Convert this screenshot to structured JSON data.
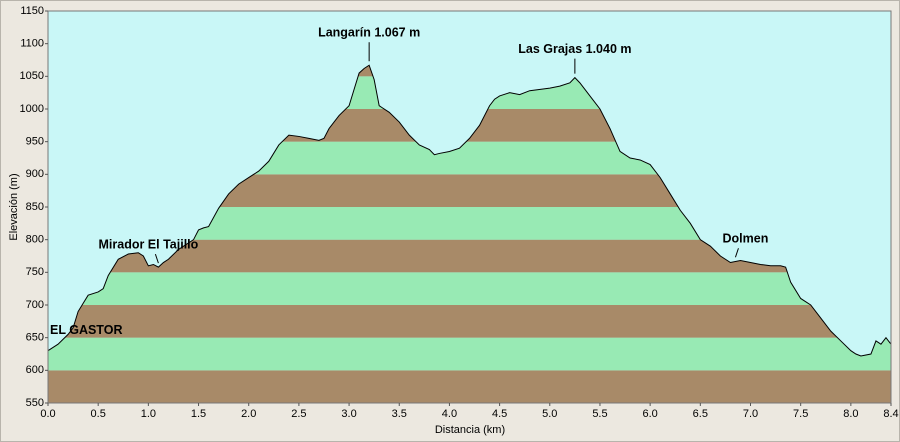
{
  "chart_data": {
    "type": "area",
    "x_label": "Distancia  (km)",
    "y_label": "Elevación (m)",
    "x": [
      0.0,
      0.05,
      0.1,
      0.2,
      0.25,
      0.3,
      0.4,
      0.5,
      0.55,
      0.6,
      0.7,
      0.8,
      0.9,
      0.95,
      1.0,
      1.05,
      1.1,
      1.15,
      1.2,
      1.3,
      1.45,
      1.5,
      1.55,
      1.6,
      1.7,
      1.8,
      1.9,
      2.0,
      2.1,
      2.2,
      2.3,
      2.4,
      2.5,
      2.6,
      2.7,
      2.75,
      2.8,
      2.9,
      3.0,
      3.05,
      3.1,
      3.15,
      3.2,
      3.25,
      3.3,
      3.4,
      3.5,
      3.6,
      3.7,
      3.8,
      3.85,
      3.9,
      4.0,
      4.1,
      4.2,
      4.3,
      4.4,
      4.45,
      4.5,
      4.6,
      4.7,
      4.8,
      5.0,
      5.1,
      5.2,
      5.25,
      5.3,
      5.4,
      5.5,
      5.6,
      5.7,
      5.8,
      5.9,
      6.0,
      6.1,
      6.2,
      6.3,
      6.4,
      6.5,
      6.6,
      6.7,
      6.8,
      6.9,
      7.0,
      7.1,
      7.2,
      7.3,
      7.35,
      7.4,
      7.5,
      7.6,
      7.7,
      7.8,
      7.9,
      8.0,
      8.05,
      8.1,
      8.2,
      8.25,
      8.3,
      8.35,
      8.4
    ],
    "values": [
      630,
      635,
      640,
      655,
      665,
      690,
      715,
      720,
      725,
      745,
      770,
      778,
      780,
      775,
      760,
      762,
      758,
      765,
      770,
      785,
      800,
      815,
      818,
      820,
      848,
      870,
      885,
      895,
      905,
      920,
      945,
      960,
      958,
      955,
      952,
      955,
      970,
      990,
      1005,
      1030,
      1055,
      1062,
      1067,
      1045,
      1005,
      995,
      980,
      960,
      945,
      938,
      930,
      932,
      935,
      940,
      955,
      975,
      1005,
      1015,
      1020,
      1025,
      1022,
      1028,
      1032,
      1035,
      1040,
      1048,
      1040,
      1020,
      1000,
      970,
      935,
      925,
      922,
      915,
      895,
      870,
      845,
      825,
      800,
      790,
      775,
      765,
      768,
      765,
      762,
      760,
      760,
      758,
      735,
      710,
      700,
      680,
      660,
      645,
      630,
      625,
      622,
      625,
      645,
      640,
      650,
      640
    ],
    "xlim": [
      0,
      8.4
    ],
    "ylim": [
      550,
      1150
    ],
    "xticks": [
      {
        "value": 0,
        "label": "0.0"
      },
      0.5,
      {
        "value": 1,
        "label": "1.0"
      },
      1.5,
      {
        "value": 2,
        "label": "2.0"
      },
      2.5,
      {
        "value": 3,
        "label": "3.0"
      },
      3.5,
      {
        "value": 4,
        "label": "4.0"
      },
      4.5,
      {
        "value": 5,
        "label": "5.0"
      },
      5.5,
      {
        "value": 6,
        "label": "6.0"
      },
      6.5,
      {
        "value": 7,
        "label": "7.0"
      },
      7.5,
      {
        "value": 8,
        "label": "8.0"
      },
      8.4
    ],
    "yticks": [
      550,
      600,
      650,
      700,
      750,
      800,
      850,
      900,
      950,
      1000,
      1050,
      1100,
      1150
    ],
    "band_colors": [
      "#a88a68",
      "#98eab4"
    ],
    "background_color": "#c9f7f7",
    "line_color": "#000000",
    "annotations": [
      {
        "text": "Langarín 1.067 m",
        "x": 3.2,
        "y": 1067
      },
      {
        "text": "Las Grajas 1.040 m",
        "x": 5.25,
        "y": 1048
      },
      {
        "text": "Mirador El Tajillo",
        "x": 1.1,
        "y": 758
      },
      {
        "text": "Dolmen",
        "x": 6.85,
        "y": 767
      },
      {
        "text": "EL GASTOR",
        "x": 0.0,
        "y": 630
      }
    ]
  }
}
